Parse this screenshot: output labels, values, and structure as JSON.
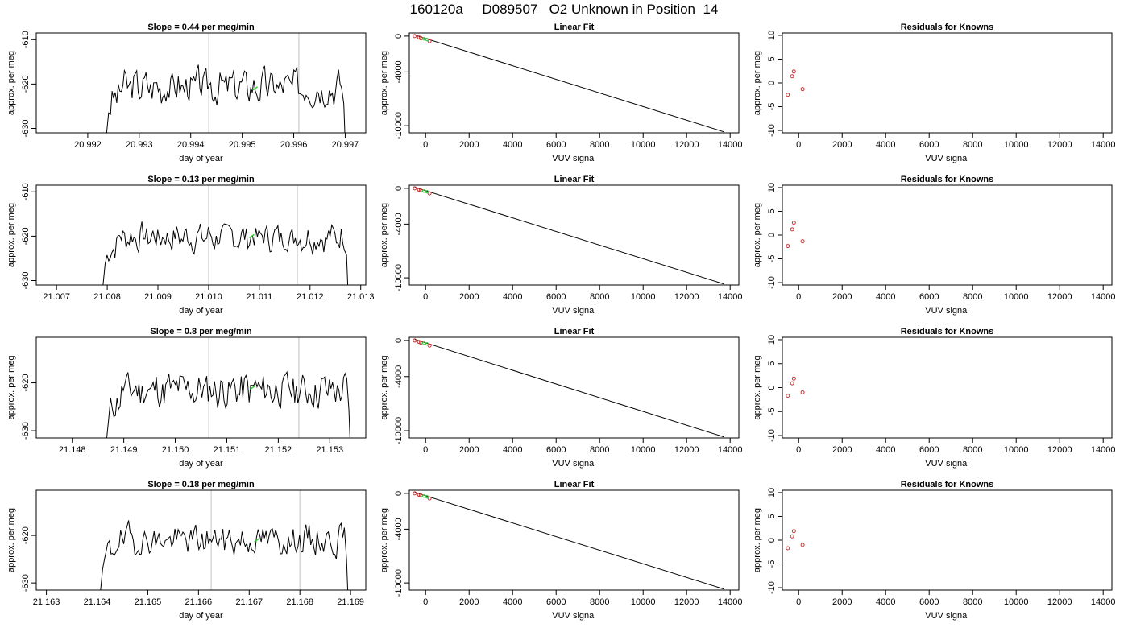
{
  "figure": {
    "title": "160120a     D089507   O2 Unknown in Position  14"
  },
  "colors": {
    "line": "#000000",
    "known_marker": "#cc3333",
    "unknown_marker": "#33cc33",
    "vline": "#cccccc"
  },
  "chart_data": [
    {
      "type": "line",
      "title": "Slope =  0.44  per meg/min",
      "xlabel": "day of year",
      "ylabel": "approx. per meg",
      "xlim": [
        20.991,
        20.9974
      ],
      "ylim": [
        -631,
        -608.5
      ],
      "xticks": [
        "20.992",
        "20.993",
        "20.994",
        "20.995",
        "20.996",
        "20.997"
      ],
      "xtick_values": [
        20.992,
        20.993,
        20.994,
        20.995,
        20.996,
        20.997
      ],
      "yticks": [
        "-630",
        "-620",
        "-610"
      ],
      "ytick_values": [
        -630,
        -620,
        -610
      ],
      "grid": false,
      "vlines": [
        20.99435,
        20.9961
      ],
      "trace": {
        "x_start": 20.99235,
        "x_end": 20.997,
        "base": -620.5,
        "amp": 2.0,
        "seed": 3
      },
      "unknown_point": {
        "x": 20.99525,
        "y": -621
      }
    },
    {
      "type": "scatter",
      "title": "Linear Fit",
      "xlabel": "VUV signal",
      "ylabel": "approx. per meg",
      "xlim": [
        -750,
        14400
      ],
      "ylim": [
        -10800,
        350
      ],
      "xticks": [
        "0",
        "2000",
        "4000",
        "6000",
        "8000",
        "10000",
        "12000",
        "14000"
      ],
      "xtick_values": [
        0,
        2000,
        4000,
        6000,
        8000,
        10000,
        12000,
        14000
      ],
      "yticks": [
        "0",
        "-4000",
        "-10000"
      ],
      "ytick_values": [
        0,
        -4000,
        -10000
      ],
      "grid": false,
      "fit_line": [
        [
          -500,
          120
        ],
        [
          13700,
          -10680
        ]
      ],
      "knowns": [
        [
          -500,
          0
        ],
        [
          -300,
          -160
        ],
        [
          -220,
          -240
        ],
        [
          180,
          -560
        ]
      ],
      "unknowns": [
        [
          -80,
          -300
        ],
        [
          60,
          -380
        ]
      ]
    },
    {
      "type": "scatter",
      "title": "Residuals for Knowns",
      "xlabel": "VUV signal",
      "ylabel": "approx. per meg",
      "xlim": [
        -750,
        14400
      ],
      "ylim": [
        -10.5,
        10.5
      ],
      "xticks": [
        "0",
        "2000",
        "4000",
        "6000",
        "8000",
        "10000",
        "12000",
        "14000"
      ],
      "xtick_values": [
        0,
        2000,
        4000,
        6000,
        8000,
        10000,
        12000,
        14000
      ],
      "yticks": [
        "-10",
        "-5",
        "0",
        "5",
        "10"
      ],
      "ytick_values": [
        -10,
        -5,
        0,
        5,
        10
      ],
      "grid": false,
      "knowns": [
        [
          -500,
          -2.5
        ],
        [
          -300,
          1.4
        ],
        [
          -220,
          2.4
        ],
        [
          180,
          -1.3
        ]
      ]
    },
    {
      "type": "line",
      "title": "Slope =  0.13  per meg/min",
      "xlabel": "day of year",
      "ylabel": "approx. per meg",
      "xlim": [
        21.0066,
        21.0131
      ],
      "ylim": [
        -631,
        -608.5
      ],
      "xticks": [
        "21.007",
        "21.008",
        "21.009",
        "21.010",
        "21.011",
        "21.012",
        "21.013"
      ],
      "xtick_values": [
        21.007,
        21.008,
        21.009,
        21.01,
        21.011,
        21.012,
        21.013
      ],
      "yticks": [
        "-630",
        "-620",
        "-610"
      ],
      "ytick_values": [
        -630,
        -620,
        -610
      ],
      "grid": false,
      "vlines": [
        21.01,
        21.01175
      ],
      "trace": {
        "x_start": 21.0079,
        "x_end": 21.01275,
        "base": -620.2,
        "amp": 1.6,
        "seed": 7
      },
      "unknown_point": {
        "x": 21.01085,
        "y": -620
      }
    },
    {
      "type": "scatter",
      "title": "Linear Fit",
      "xlabel": "VUV signal",
      "ylabel": "approx. per meg",
      "xlim": [
        -750,
        14400
      ],
      "ylim": [
        -10800,
        350
      ],
      "xticks": [
        "0",
        "2000",
        "4000",
        "6000",
        "8000",
        "10000",
        "12000",
        "14000"
      ],
      "xtick_values": [
        0,
        2000,
        4000,
        6000,
        8000,
        10000,
        12000,
        14000
      ],
      "yticks": [
        "0",
        "-4000",
        "-10000"
      ],
      "ytick_values": [
        0,
        -4000,
        -10000
      ],
      "grid": false,
      "fit_line": [
        [
          -500,
          120
        ],
        [
          13700,
          -10680
        ]
      ],
      "knowns": [
        [
          -500,
          0
        ],
        [
          -300,
          -160
        ],
        [
          -220,
          -240
        ],
        [
          180,
          -560
        ]
      ],
      "unknowns": [
        [
          -80,
          -300
        ],
        [
          60,
          -380
        ]
      ]
    },
    {
      "type": "scatter",
      "title": "Residuals for Knowns",
      "xlabel": "VUV signal",
      "ylabel": "approx. per meg",
      "xlim": [
        -750,
        14400
      ],
      "ylim": [
        -10.5,
        10.5
      ],
      "xticks": [
        "0",
        "2000",
        "4000",
        "6000",
        "8000",
        "10000",
        "12000",
        "14000"
      ],
      "xtick_values": [
        0,
        2000,
        4000,
        6000,
        8000,
        10000,
        12000,
        14000
      ],
      "yticks": [
        "-10",
        "-5",
        "0",
        "5",
        "10"
      ],
      "ytick_values": [
        -10,
        -5,
        0,
        5,
        10
      ],
      "grid": false,
      "knowns": [
        [
          -500,
          -2.3
        ],
        [
          -300,
          1.2
        ],
        [
          -220,
          2.6
        ],
        [
          180,
          -1.3
        ]
      ]
    },
    {
      "type": "line",
      "title": "Slope =  0.8  per meg/min",
      "xlabel": "day of year",
      "ylabel": "approx. per meg",
      "xlim": [
        21.1473,
        21.1537
      ],
      "ylim": [
        -631.5,
        -610.5
      ],
      "xticks": [
        "21.148",
        "21.149",
        "21.150",
        "21.151",
        "21.152",
        "21.153"
      ],
      "xtick_values": [
        21.148,
        21.149,
        21.15,
        21.151,
        21.152,
        21.153
      ],
      "yticks": [
        "-630",
        "-620"
      ],
      "ytick_values": [
        -630,
        -620
      ],
      "grid": false,
      "vlines": [
        21.15065,
        21.1524
      ],
      "trace": {
        "x_start": 21.14865,
        "x_end": 21.1534,
        "base": -621.5,
        "amp": 2.0,
        "seed": 11
      },
      "unknown_point": {
        "x": 21.1515,
        "y": -621
      }
    },
    {
      "type": "scatter",
      "title": "Linear Fit",
      "xlabel": "VUV signal",
      "ylabel": "approx. per meg",
      "xlim": [
        -750,
        14400
      ],
      "ylim": [
        -10800,
        350
      ],
      "xticks": [
        "0",
        "2000",
        "4000",
        "6000",
        "8000",
        "10000",
        "12000",
        "14000"
      ],
      "xtick_values": [
        0,
        2000,
        4000,
        6000,
        8000,
        10000,
        12000,
        14000
      ],
      "yticks": [
        "0",
        "-4000",
        "-10000"
      ],
      "ytick_values": [
        0,
        -4000,
        -10000
      ],
      "grid": false,
      "fit_line": [
        [
          -500,
          120
        ],
        [
          13700,
          -10680
        ]
      ],
      "knowns": [
        [
          -500,
          0
        ],
        [
          -300,
          -160
        ],
        [
          -220,
          -240
        ],
        [
          180,
          -560
        ]
      ],
      "unknowns": [
        [
          -80,
          -300
        ],
        [
          60,
          -380
        ]
      ]
    },
    {
      "type": "scatter",
      "title": "Residuals for Knowns",
      "xlabel": "VUV signal",
      "ylabel": "approx. per meg",
      "xlim": [
        -750,
        14400
      ],
      "ylim": [
        -10.5,
        10.5
      ],
      "xticks": [
        "0",
        "2000",
        "4000",
        "6000",
        "8000",
        "10000",
        "12000",
        "14000"
      ],
      "xtick_values": [
        0,
        2000,
        4000,
        6000,
        8000,
        10000,
        12000,
        14000
      ],
      "yticks": [
        "-10",
        "-5",
        "0",
        "5",
        "10"
      ],
      "ytick_values": [
        -10,
        -5,
        0,
        5,
        10
      ],
      "grid": false,
      "knowns": [
        [
          -500,
          -1.7
        ],
        [
          -300,
          0.9
        ],
        [
          -220,
          1.9
        ],
        [
          180,
          -1.0
        ]
      ]
    },
    {
      "type": "line",
      "title": "Slope =  0.18  per meg/min",
      "xlabel": "day of year",
      "ylabel": "approx. per meg",
      "xlim": [
        21.1628,
        21.1693
      ],
      "ylim": [
        -631.5,
        -610.5
      ],
      "xticks": [
        "21.163",
        "21.164",
        "21.165",
        "21.166",
        "21.167",
        "21.168",
        "21.169"
      ],
      "xtick_values": [
        21.163,
        21.164,
        21.165,
        21.166,
        21.167,
        21.168,
        21.169
      ],
      "yticks": [
        "-630",
        "-620"
      ],
      "ytick_values": [
        -630,
        -620
      ],
      "grid": false,
      "vlines": [
        21.16625,
        21.168
      ],
      "trace": {
        "x_start": 21.16405,
        "x_end": 21.16895,
        "base": -621.0,
        "amp": 1.6,
        "seed": 19
      },
      "unknown_point": {
        "x": 21.16715,
        "y": -621
      }
    },
    {
      "type": "scatter",
      "title": "Linear Fit",
      "xlabel": "VUV signal",
      "ylabel": "approx. per meg",
      "xlim": [
        -750,
        14400
      ],
      "ylim": [
        -10800,
        350
      ],
      "xticks": [
        "0",
        "2000",
        "4000",
        "6000",
        "8000",
        "10000",
        "12000",
        "14000"
      ],
      "xtick_values": [
        0,
        2000,
        4000,
        6000,
        8000,
        10000,
        12000,
        14000
      ],
      "yticks": [
        "0",
        "-4000",
        "-10000"
      ],
      "ytick_values": [
        0,
        -4000,
        -10000
      ],
      "grid": false,
      "fit_line": [
        [
          -500,
          120
        ],
        [
          13700,
          -10680
        ]
      ],
      "knowns": [
        [
          -500,
          0
        ],
        [
          -300,
          -160
        ],
        [
          -220,
          -240
        ],
        [
          180,
          -560
        ]
      ],
      "unknowns": [
        [
          -80,
          -300
        ],
        [
          60,
          -380
        ]
      ]
    },
    {
      "type": "scatter",
      "title": "Residuals for Knowns",
      "xlabel": "VUV signal",
      "ylabel": "approx. per meg",
      "xlim": [
        -750,
        14400
      ],
      "ylim": [
        -10.5,
        10.5
      ],
      "xticks": [
        "0",
        "2000",
        "4000",
        "6000",
        "8000",
        "10000",
        "12000",
        "14000"
      ],
      "xtick_values": [
        0,
        2000,
        4000,
        6000,
        8000,
        10000,
        12000,
        14000
      ],
      "yticks": [
        "-10",
        "-5",
        "0",
        "5",
        "10"
      ],
      "ytick_values": [
        -10,
        -5,
        0,
        5,
        10
      ],
      "grid": false,
      "knowns": [
        [
          -500,
          -1.7
        ],
        [
          -300,
          0.8
        ],
        [
          -220,
          1.9
        ],
        [
          180,
          -1.0
        ]
      ]
    }
  ]
}
